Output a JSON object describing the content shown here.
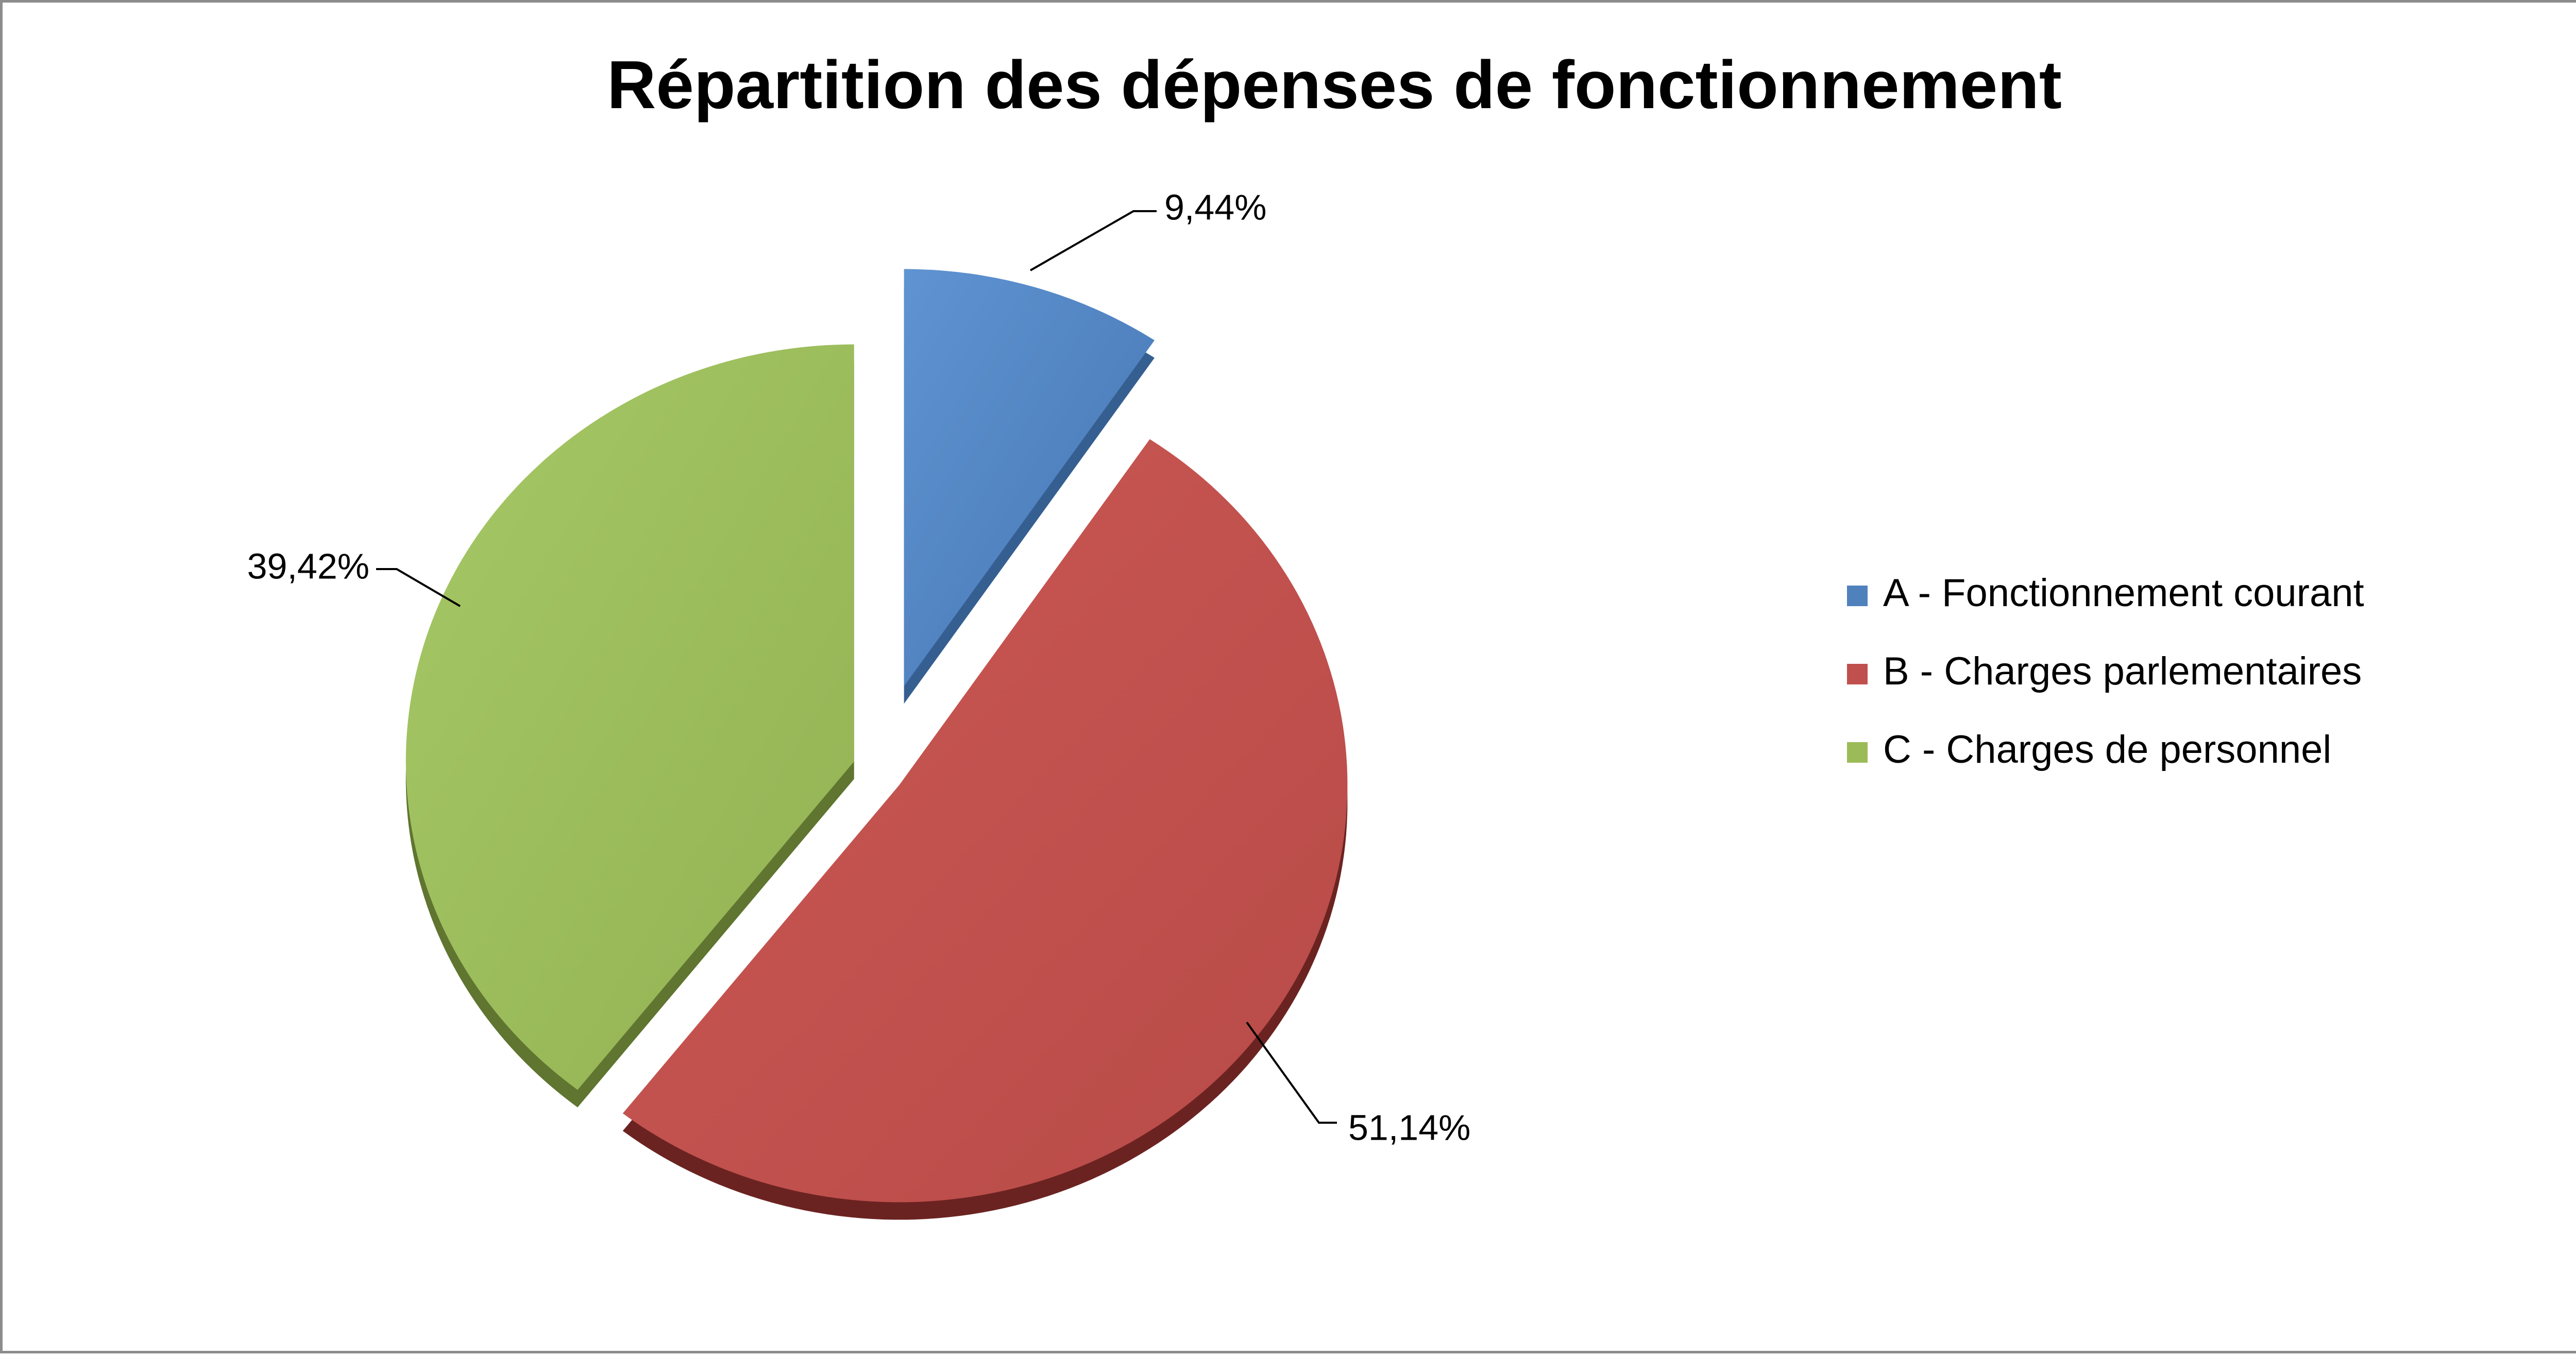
{
  "chart_data": {
    "type": "pie",
    "title": "Répartition des dépenses de fonctionnement",
    "categories": [
      "A - Fonctionnement courant",
      "B - Charges parlementaires",
      "C - Charges de personnel"
    ],
    "values": [
      9.44,
      51.14,
      39.42
    ],
    "data_labels": [
      "9,44%",
      "51,14%",
      "39,42%"
    ],
    "colors": [
      "#4f81bd",
      "#c0504d",
      "#9bbb59"
    ],
    "legend": "right",
    "exploded": true
  }
}
